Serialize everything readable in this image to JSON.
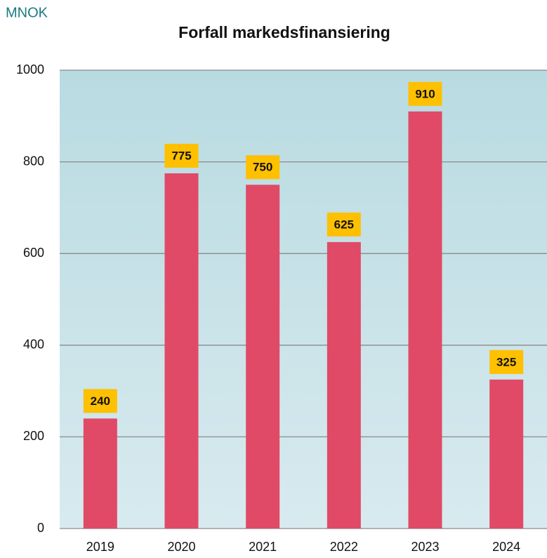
{
  "chart_data": {
    "type": "bar",
    "unit_label": "MNOK",
    "title": "Forfall markedsfinansiering",
    "categories": [
      "2019",
      "2020",
      "2021",
      "2022",
      "2023",
      "2024"
    ],
    "values": [
      240,
      775,
      750,
      625,
      910,
      325
    ],
    "color": "#e04a66",
    "label_color": "#ffc000",
    "ylim": [
      0,
      1000
    ],
    "yticks": [
      0,
      200,
      400,
      600,
      800,
      1000
    ],
    "grid": true
  }
}
